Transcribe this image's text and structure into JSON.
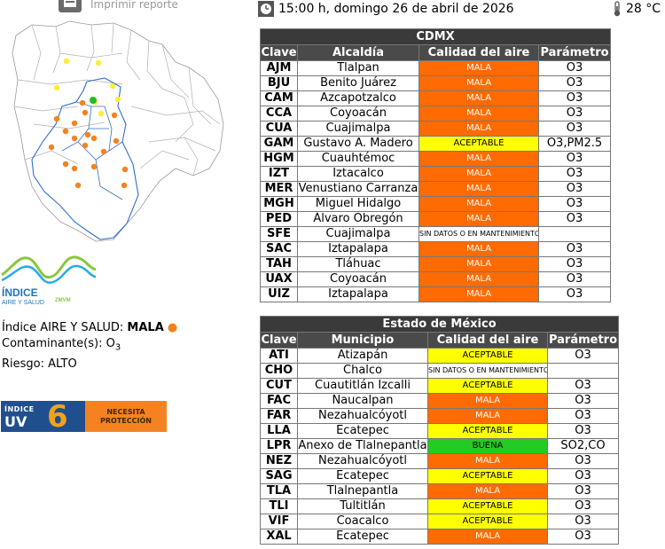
{
  "print": {
    "label": "Imprimir reporte"
  },
  "header": {
    "datetime": "15:00 h, domingo 26 de abril de 2026",
    "temperature": "28 °C"
  },
  "logo": {
    "line1": "ÍNDICE",
    "line2": "AIRE Y SALUD",
    "suffix": "ZMVM"
  },
  "status": {
    "indice_label": "Índice AIRE Y SALUD:",
    "indice_value": "MALA",
    "dot": "●",
    "contaminante_label": "Contaminante(s):",
    "contaminante_value": "O",
    "contaminante_sub": "3",
    "riesgo_label": "Riesgo:",
    "riesgo_value": "ALTO"
  },
  "uv": {
    "indice": "ÍNDICE",
    "uv": "UV",
    "value": "6",
    "line1": "NECESITA",
    "line2": "PROTECCIÓN",
    "colors": {
      "left": "#1f4f8f",
      "right": "#f58220"
    }
  },
  "colors": {
    "mala": "#ff6b00",
    "aceptable": "#ffff00",
    "buena": "#22cc22"
  },
  "cdmx": {
    "title": "CDMX",
    "headers": [
      "Clave",
      "Alcaldía",
      "Calidad del aire",
      "Parámetro"
    ],
    "rows": [
      {
        "clave": "AJM",
        "name": "Tlalpan",
        "calidad": "MALA",
        "param": "O3"
      },
      {
        "clave": "BJU",
        "name": "Benito Juárez",
        "calidad": "MALA",
        "param": "O3"
      },
      {
        "clave": "CAM",
        "name": "Azcapotzalco",
        "calidad": "MALA",
        "param": "O3"
      },
      {
        "clave": "CCA",
        "name": "Coyoacán",
        "calidad": "MALA",
        "param": "O3"
      },
      {
        "clave": "CUA",
        "name": "Cuajimalpa",
        "calidad": "MALA",
        "param": "O3"
      },
      {
        "clave": "GAM",
        "name": "Gustavo A. Madero",
        "calidad": "ACEPTABLE",
        "param": "O3,PM2.5"
      },
      {
        "clave": "HGM",
        "name": "Cuauhtémoc",
        "calidad": "MALA",
        "param": "O3"
      },
      {
        "clave": "IZT",
        "name": "Iztacalco",
        "calidad": "MALA",
        "param": "O3"
      },
      {
        "clave": "MER",
        "name": "Venustiano Carranza",
        "calidad": "MALA",
        "param": "O3"
      },
      {
        "clave": "MGH",
        "name": "Miguel Hidalgo",
        "calidad": "MALA",
        "param": "O3"
      },
      {
        "clave": "PED",
        "name": "Álvaro Obregón",
        "calidad": "MALA",
        "param": "O3"
      },
      {
        "clave": "SFE",
        "name": "Cuajimalpa",
        "calidad": "SIN DATOS O EN MANTENIMIENTO",
        "param": ""
      },
      {
        "clave": "SAC",
        "name": "Iztapalapa",
        "calidad": "MALA",
        "param": "O3"
      },
      {
        "clave": "TAH",
        "name": "Tláhuac",
        "calidad": "MALA",
        "param": "O3"
      },
      {
        "clave": "UAX",
        "name": "Coyoacán",
        "calidad": "MALA",
        "param": "O3"
      },
      {
        "clave": "UIZ",
        "name": "Iztapalapa",
        "calidad": "MALA",
        "param": "O3"
      }
    ]
  },
  "edomex": {
    "title": "Estado de México",
    "headers": [
      "Clave",
      "Municipio",
      "Calidad del aire",
      "Parámetro"
    ],
    "rows": [
      {
        "clave": "ATI",
        "name": "Atizapán",
        "calidad": "ACEPTABLE",
        "param": "O3"
      },
      {
        "clave": "CHO",
        "name": "Chalco",
        "calidad": "SIN DATOS O EN MANTENIMIENTO",
        "param": ""
      },
      {
        "clave": "CUT",
        "name": "Cuautitlán Izcalli",
        "calidad": "ACEPTABLE",
        "param": "O3"
      },
      {
        "clave": "FAC",
        "name": "Naucalpan",
        "calidad": "MALA",
        "param": "O3"
      },
      {
        "clave": "FAR",
        "name": "Nezahualcóyotl",
        "calidad": "MALA",
        "param": "O3"
      },
      {
        "clave": "LLA",
        "name": "Ecatepec",
        "calidad": "ACEPTABLE",
        "param": "O3"
      },
      {
        "clave": "LPR",
        "name": "Anexo de Tlalnepantla",
        "calidad": "BUENA",
        "param": "SO2,CO"
      },
      {
        "clave": "NEZ",
        "name": "Nezahualcóyotl",
        "calidad": "MALA",
        "param": "O3"
      },
      {
        "clave": "SAG",
        "name": "Ecatepec",
        "calidad": "ACEPTABLE",
        "param": "O3"
      },
      {
        "clave": "TLA",
        "name": "Tlalnepantla",
        "calidad": "MALA",
        "param": "O3"
      },
      {
        "clave": "TLI",
        "name": "Tultitlán",
        "calidad": "ACEPTABLE",
        "param": "O3"
      },
      {
        "clave": "VIF",
        "name": "Coacalco",
        "calidad": "ACEPTABLE",
        "param": "O3"
      },
      {
        "clave": "XAL",
        "name": "Ecatepec",
        "calidad": "MALA",
        "param": "O3"
      }
    ]
  }
}
